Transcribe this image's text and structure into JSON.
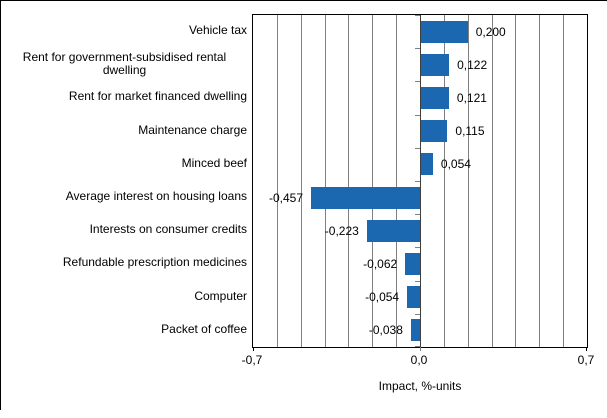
{
  "chart_data": {
    "type": "bar",
    "orientation": "horizontal",
    "title": "",
    "xlabel": "Impact, %-units",
    "xlim": [
      -0.7,
      0.7
    ],
    "gridline_interval": 0.1,
    "grid_on": true,
    "categories": [
      "Vehicle tax",
      "Rent for government-subsidised rental dwelling",
      "Rent for market financed dwelling",
      "Maintenance charge",
      "Minced beef",
      "Average interest on housing loans",
      "Interests on consumer credits",
      "Refundable prescription medicines",
      "Computer",
      "Packet of coffee"
    ],
    "values": [
      0.2,
      0.122,
      0.121,
      0.115,
      0.054,
      -0.457,
      -0.223,
      -0.062,
      -0.054,
      -0.038
    ],
    "value_labels": [
      "0,200",
      "0,122",
      "0,121",
      "0,115",
      "0,054",
      "-0,457",
      "-0,223",
      "-0,062",
      "-0,054",
      "-0,038"
    ],
    "x_ticks": [
      {
        "value": -0.7,
        "label": "-0,7"
      },
      {
        "value": 0.0,
        "label": "0,0"
      },
      {
        "value": 0.7,
        "label": "0,7"
      }
    ],
    "bar_color": "#1b67b0",
    "grid_color": "#808080",
    "axis_color": "#000000",
    "zero_axis_color": "#3f3f3f"
  }
}
